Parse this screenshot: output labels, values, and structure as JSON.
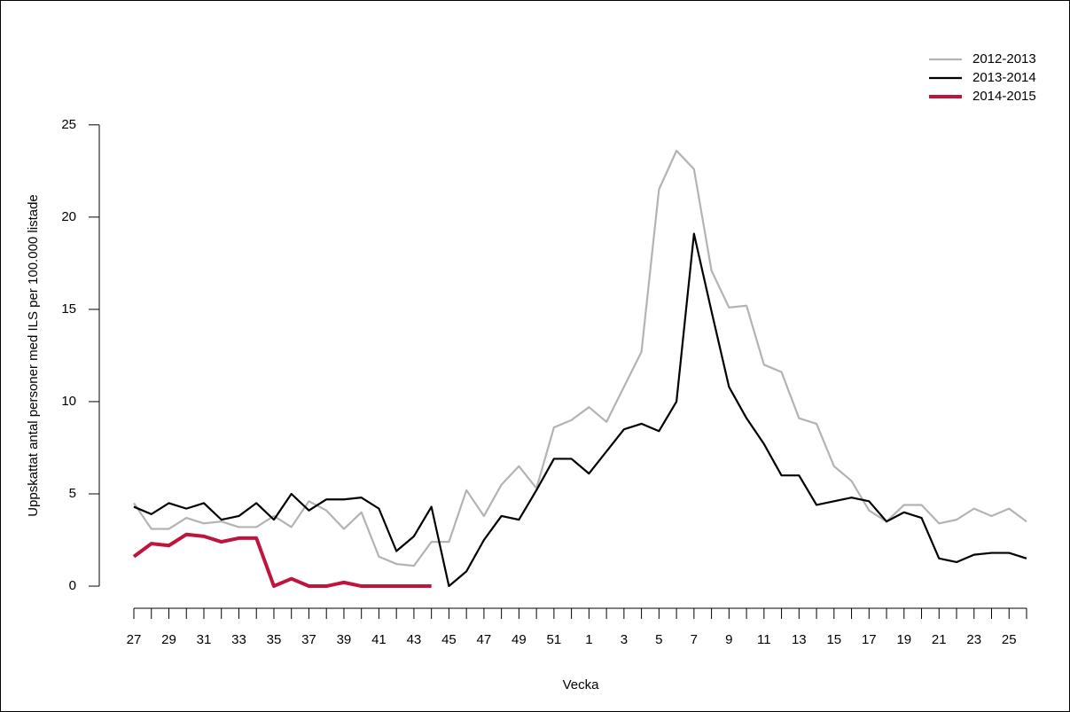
{
  "chart_data": {
    "type": "line",
    "x_label": "Vecka",
    "y_label": "Uppskattat antal personer med ILS per 100.000 listade",
    "categories": [
      "27",
      null,
      "29",
      null,
      "31",
      null,
      "33",
      null,
      "35",
      null,
      "37",
      null,
      "39",
      null,
      "41",
      null,
      "43",
      null,
      "45",
      null,
      "47",
      null,
      "49",
      null,
      "51",
      null,
      "1",
      null,
      "3",
      null,
      "5",
      null,
      "7",
      null,
      "9",
      null,
      "11",
      null,
      "13",
      null,
      "15",
      null,
      "17",
      null,
      "19",
      null,
      "21",
      null,
      "23",
      null,
      "25",
      null
    ],
    "series": [
      {
        "name": "2012-2013",
        "color": "#b3b3b3",
        "values": [
          4.5,
          3.1,
          3.1,
          3.7,
          3.4,
          3.5,
          3.2,
          3.2,
          3.8,
          3.2,
          4.6,
          4.1,
          3.1,
          4.0,
          1.6,
          1.2,
          1.1,
          2.4,
          2.4,
          5.2,
          3.8,
          5.5,
          6.5,
          5.3,
          8.6,
          9.0,
          9.7,
          8.9,
          10.8,
          12.7,
          21.5,
          23.6,
          22.6,
          17.1,
          15.1,
          15.2,
          12.0,
          11.6,
          9.1,
          8.8,
          6.5,
          5.7,
          4.1,
          3.5,
          4.4,
          4.4,
          3.4,
          3.6,
          4.2,
          3.8,
          4.2,
          3.5
        ]
      },
      {
        "name": "2013-2014",
        "color": "#000000",
        "values": [
          4.3,
          3.9,
          4.5,
          4.2,
          4.5,
          3.6,
          3.8,
          4.5,
          3.6,
          5.0,
          4.1,
          4.7,
          4.7,
          4.8,
          4.2,
          1.9,
          2.7,
          4.3,
          0,
          0.8,
          2.5,
          3.8,
          3.6,
          5.2,
          6.9,
          6.9,
          6.1,
          7.3,
          8.5,
          8.8,
          8.4,
          10.0,
          19.1,
          14.9,
          10.8,
          9.1,
          7.7,
          6.0,
          6.0,
          4.4,
          4.6,
          4.8,
          4.6,
          3.5,
          4.0,
          3.7,
          1.5,
          1.3,
          1.7,
          1.8,
          1.8,
          1.5
        ]
      },
      {
        "name": "2014-2015",
        "color": "#c0143c",
        "values": [
          1.6,
          2.3,
          2.2,
          2.8,
          2.7,
          2.4,
          2.6,
          2.6,
          0,
          0.4,
          0,
          0,
          0.2,
          0,
          0,
          0,
          0,
          0,
          null,
          null,
          null,
          null,
          null,
          null,
          null,
          null,
          null,
          null,
          null,
          null,
          null,
          null,
          null,
          null,
          null,
          null,
          null,
          null,
          null,
          null,
          null,
          null,
          null,
          null,
          null,
          null,
          null,
          null,
          null,
          null,
          null,
          null
        ]
      }
    ],
    "ylim": [
      -1.2,
      26
    ],
    "yticks": [
      0,
      5,
      10,
      15,
      20,
      25
    ],
    "legend": "top-right"
  }
}
